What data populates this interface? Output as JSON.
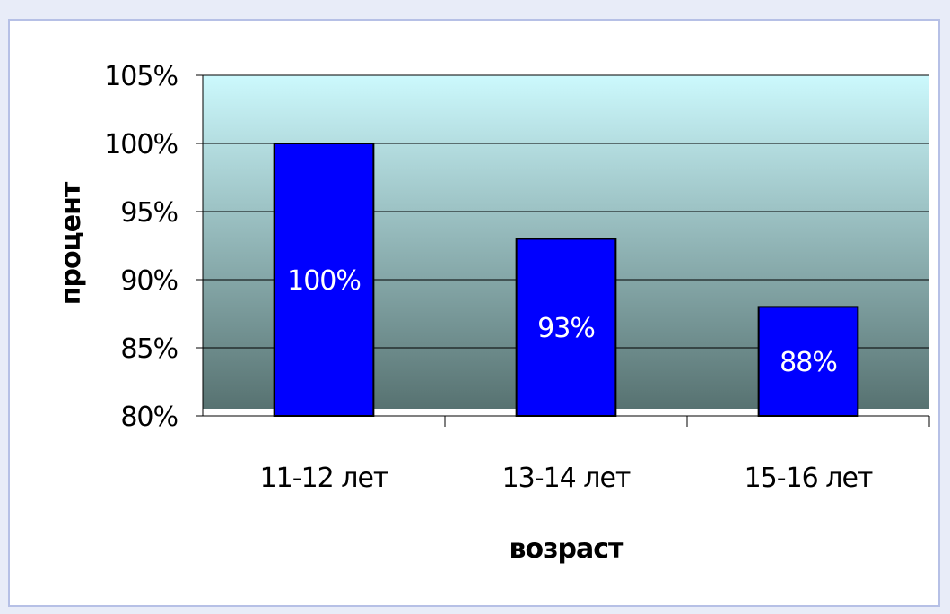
{
  "chart_data": {
    "type": "bar",
    "title": "",
    "xlabel": "возраст",
    "ylabel": "процент",
    "categories": [
      "11-12 лет",
      "13-14 лет",
      "15-16 лет"
    ],
    "values": [
      100,
      93,
      88
    ],
    "data_labels": [
      "100%",
      "93%",
      "88%"
    ],
    "ylim": [
      80,
      105
    ],
    "yticks": [
      80,
      85,
      90,
      95,
      100,
      105
    ],
    "ytick_labels": [
      "80%",
      "85%",
      "90%",
      "95%",
      "100%",
      "105%"
    ],
    "grid": true,
    "legend": "none",
    "colors": {
      "bar_fill": "#0000ff",
      "bar_stroke": "#000000",
      "plot_bg_top": "#ccf9fd",
      "plot_bg_bottom": "#577271",
      "gridline": "#000000",
      "data_label": "#ffffff"
    }
  }
}
